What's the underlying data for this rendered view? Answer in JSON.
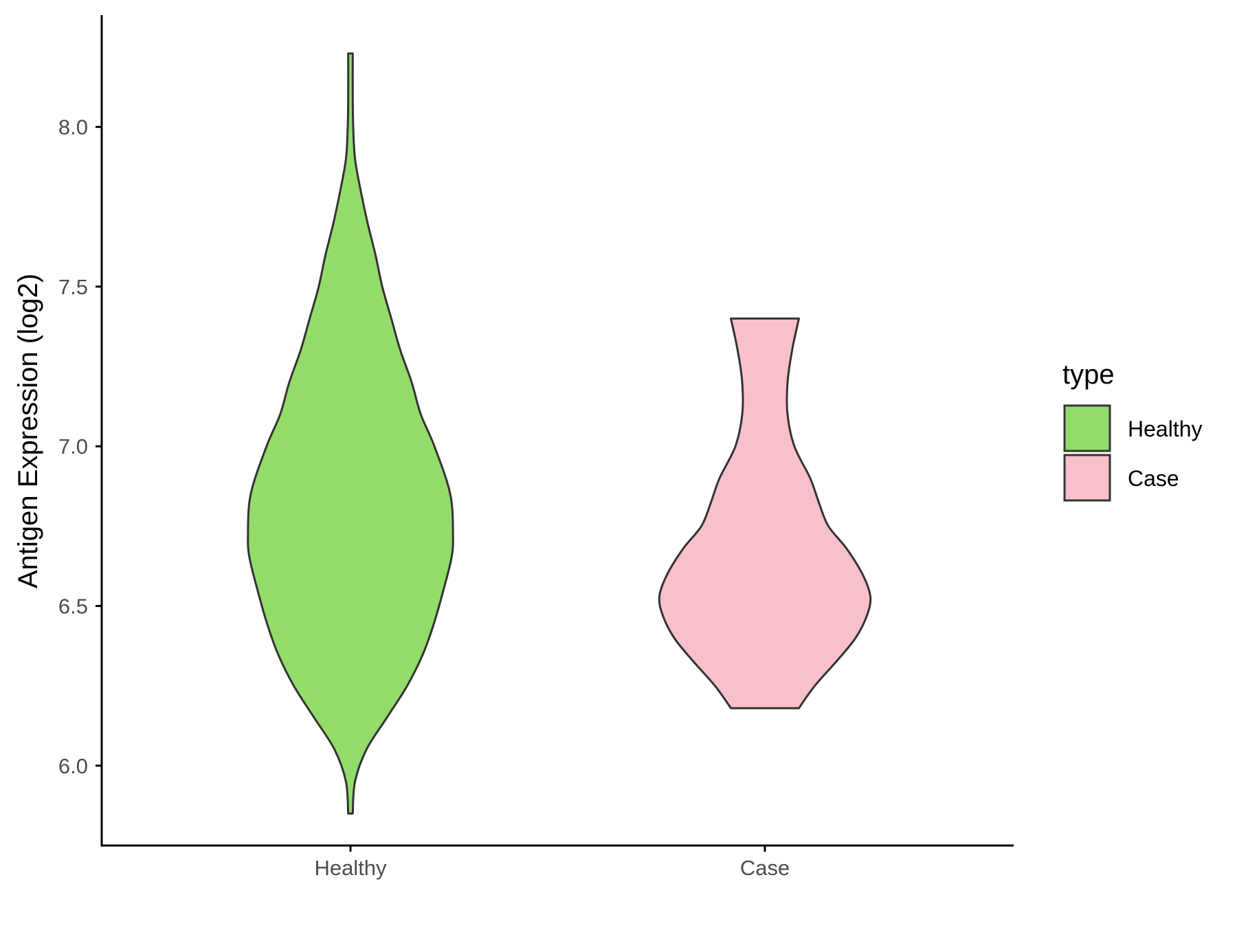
{
  "chart_data": {
    "type": "violin",
    "ylabel": "Antigen Expression (log2)",
    "xlabel": "",
    "ylim": [
      5.75,
      8.35
    ],
    "yticks": [
      "6.0",
      "6.5",
      "7.0",
      "7.5",
      "8.0"
    ],
    "categories": [
      "Healthy",
      "Case"
    ],
    "grid": false,
    "legend": {
      "title": "type",
      "position": "right",
      "entries": [
        {
          "label": "Healthy",
          "color": "#93DC6A"
        },
        {
          "label": "Case",
          "color": "#F7C0CB"
        }
      ]
    },
    "series": [
      {
        "category": "Healthy",
        "color": "#93DC6A",
        "min": 5.85,
        "max": 8.23,
        "density": [
          [
            5.85,
            0.01
          ],
          [
            5.95,
            0.02
          ],
          [
            6.05,
            0.07
          ],
          [
            6.15,
            0.16
          ],
          [
            6.25,
            0.25
          ],
          [
            6.35,
            0.32
          ],
          [
            6.45,
            0.37
          ],
          [
            6.55,
            0.41
          ],
          [
            6.65,
            0.445
          ],
          [
            6.72,
            0.452
          ],
          [
            6.85,
            0.44
          ],
          [
            7.0,
            0.37
          ],
          [
            7.1,
            0.31
          ],
          [
            7.2,
            0.27
          ],
          [
            7.3,
            0.22
          ],
          [
            7.4,
            0.18
          ],
          [
            7.5,
            0.14
          ],
          [
            7.6,
            0.11
          ],
          [
            7.7,
            0.075
          ],
          [
            7.8,
            0.045
          ],
          [
            7.9,
            0.02
          ],
          [
            8.0,
            0.012
          ],
          [
            8.1,
            0.01
          ],
          [
            8.23,
            0.01
          ]
        ]
      },
      {
        "category": "Case",
        "color": "#F7C0CB",
        "min": 6.18,
        "max": 7.4,
        "density": [
          [
            6.18,
            0.15
          ],
          [
            6.25,
            0.22
          ],
          [
            6.33,
            0.32
          ],
          [
            6.4,
            0.4
          ],
          [
            6.47,
            0.45
          ],
          [
            6.53,
            0.465
          ],
          [
            6.6,
            0.43
          ],
          [
            6.68,
            0.36
          ],
          [
            6.75,
            0.28
          ],
          [
            6.82,
            0.24
          ],
          [
            6.9,
            0.2
          ],
          [
            7.0,
            0.13
          ],
          [
            7.1,
            0.1
          ],
          [
            7.2,
            0.1
          ],
          [
            7.3,
            0.12
          ],
          [
            7.4,
            0.15
          ]
        ]
      }
    ]
  }
}
